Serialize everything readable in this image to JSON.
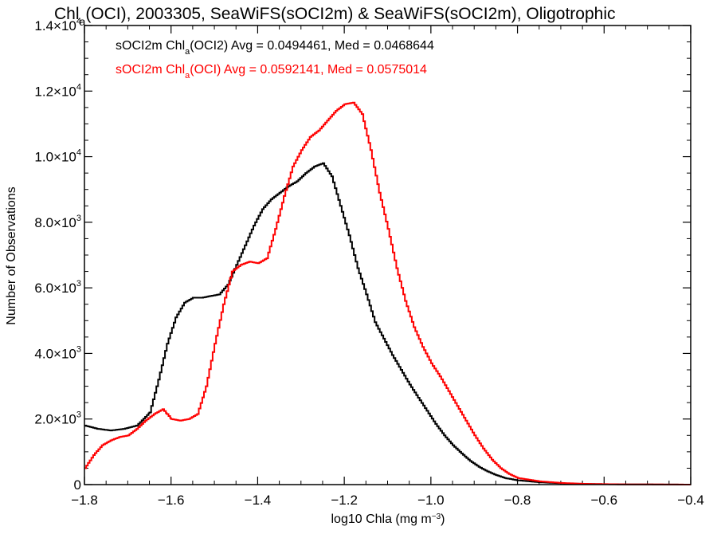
{
  "chart_data": {
    "type": "line",
    "step": true,
    "title": {
      "pre": "Chl",
      "sub": "a",
      "post": "(OCI), 2003305, SeaWiFS(sOCI2m) & SeaWiFS(sOCI2m), Oligotrophic"
    },
    "xlabel": {
      "pre": "log10 Chla (mg m",
      "sup": "−3",
      "post": ")"
    },
    "ylabel": "Number of Observations",
    "xlim": [
      -1.8,
      -0.4
    ],
    "ylim": [
      0,
      14000
    ],
    "x_ticks": [
      -1.8,
      -1.6,
      -1.4,
      -1.2,
      -1.0,
      -0.8,
      -0.6,
      -0.4
    ],
    "x_tick_labels": [
      "−1.8",
      "−1.6",
      "−1.4",
      "−1.2",
      "−1.0",
      "−0.8",
      "−0.6",
      "−0.4"
    ],
    "y_ticks": [
      {
        "value": 0,
        "mant": "0",
        "exp": ""
      },
      {
        "value": 2000,
        "mant": "2.0×10",
        "exp": "3"
      },
      {
        "value": 4000,
        "mant": "4.0×10",
        "exp": "3"
      },
      {
        "value": 6000,
        "mant": "6.0×10",
        "exp": "3"
      },
      {
        "value": 8000,
        "mant": "8.0×10",
        "exp": "3"
      },
      {
        "value": 10000,
        "mant": "1.0×10",
        "exp": "4"
      },
      {
        "value": 12000,
        "mant": "1.2×10",
        "exp": "4"
      },
      {
        "value": 14000,
        "mant": "1.4×10",
        "exp": "4"
      }
    ],
    "grid": false,
    "legend_position": "top-left",
    "legend": [
      {
        "pre": "sOCI2m Chl",
        "sub": "a",
        "post": "(OCI2) Avg = 0.0494461, Med = 0.0468644",
        "color": "#000000"
      },
      {
        "pre": "sOCI2m Chl",
        "sub": "a",
        "post": "(OCI) Avg = 0.0592141, Med = 0.0575014",
        "color": "#ff0000"
      }
    ],
    "series": [
      {
        "color": "#000000",
        "x": [
          -1.8,
          -1.77,
          -1.74,
          -1.71,
          -1.68,
          -1.65,
          -1.63,
          -1.61,
          -1.59,
          -1.57,
          -1.55,
          -1.53,
          -1.51,
          -1.49,
          -1.47,
          -1.45,
          -1.43,
          -1.41,
          -1.39,
          -1.37,
          -1.35,
          -1.33,
          -1.31,
          -1.29,
          -1.27,
          -1.25,
          -1.23,
          -1.21,
          -1.19,
          -1.17,
          -1.15,
          -1.13,
          -1.11,
          -1.09,
          -1.07,
          -1.05,
          -1.03,
          -1.01,
          -0.99,
          -0.97,
          -0.95,
          -0.93,
          -0.91,
          -0.89,
          -0.87,
          -0.85,
          -0.83,
          -0.8,
          -0.75,
          -0.7,
          -0.65,
          -0.6,
          -0.55,
          -0.5,
          -0.45,
          -0.4
        ],
        "y": [
          1800,
          1700,
          1650,
          1700,
          1800,
          2200,
          3200,
          4300,
          5100,
          5550,
          5700,
          5700,
          5750,
          5800,
          6100,
          6700,
          7300,
          7900,
          8400,
          8700,
          8900,
          9100,
          9250,
          9500,
          9700,
          9800,
          9400,
          8500,
          7600,
          6600,
          5800,
          4950,
          4450,
          3950,
          3500,
          3050,
          2650,
          2250,
          1850,
          1500,
          1200,
          950,
          720,
          540,
          400,
          290,
          200,
          130,
          70,
          40,
          20,
          12,
          6,
          4,
          2,
          0
        ]
      },
      {
        "color": "#ff0000",
        "x": [
          -1.8,
          -1.78,
          -1.76,
          -1.74,
          -1.72,
          -1.7,
          -1.68,
          -1.66,
          -1.64,
          -1.62,
          -1.61,
          -1.6,
          -1.58,
          -1.56,
          -1.54,
          -1.52,
          -1.5,
          -1.48,
          -1.46,
          -1.44,
          -1.42,
          -1.4,
          -1.38,
          -1.36,
          -1.34,
          -1.32,
          -1.3,
          -1.28,
          -1.26,
          -1.24,
          -1.22,
          -1.2,
          -1.18,
          -1.16,
          -1.14,
          -1.12,
          -1.1,
          -1.08,
          -1.06,
          -1.04,
          -1.02,
          -1.0,
          -0.98,
          -0.96,
          -0.94,
          -0.92,
          -0.9,
          -0.88,
          -0.86,
          -0.84,
          -0.82,
          -0.8,
          -0.75,
          -0.7,
          -0.65,
          -0.6,
          -0.55,
          -0.5,
          -0.45,
          -0.4
        ],
        "y": [
          500,
          900,
          1200,
          1350,
          1450,
          1500,
          1700,
          1950,
          2150,
          2300,
          2150,
          2000,
          1950,
          2000,
          2150,
          3000,
          4300,
          5500,
          6500,
          6700,
          6800,
          6750,
          6900,
          7800,
          8800,
          9700,
          10200,
          10600,
          10800,
          11100,
          11400,
          11600,
          11650,
          11300,
          10200,
          8900,
          7800,
          6600,
          5600,
          4800,
          4200,
          3700,
          3300,
          2850,
          2400,
          1950,
          1500,
          1100,
          760,
          500,
          320,
          200,
          100,
          50,
          25,
          14,
          8,
          5,
          3,
          0
        ]
      }
    ]
  }
}
